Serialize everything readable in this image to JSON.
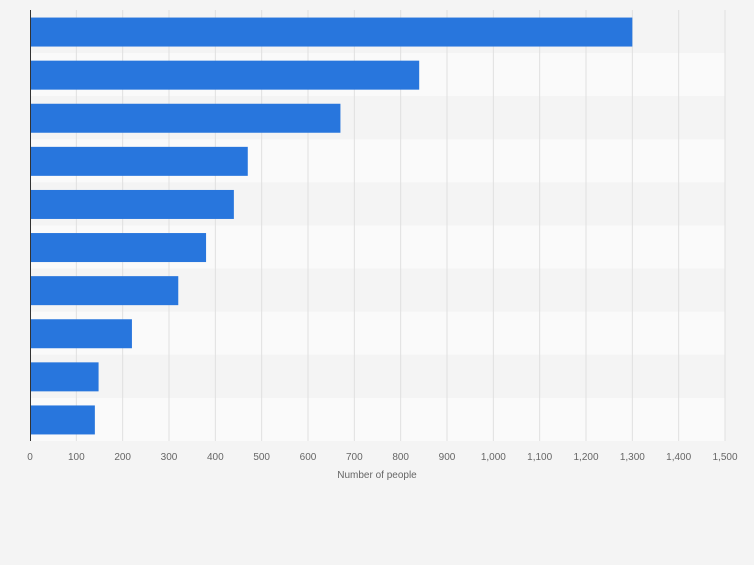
{
  "chart_data": {
    "type": "bar",
    "orientation": "horizontal",
    "categories": [
      "",
      "",
      "",
      "",
      "",
      "",
      "",
      "",
      "",
      ""
    ],
    "values": [
      1300,
      840,
      670,
      470,
      440,
      380,
      320,
      220,
      148,
      140
    ],
    "xlabel": "Number of people",
    "xlim": [
      0,
      1500
    ],
    "x_ticks": [
      "0",
      "100",
      "200",
      "300",
      "400",
      "500",
      "600",
      "700",
      "800",
      "900",
      "1,000",
      "1,100",
      "1,200",
      "1,300",
      "1,400",
      "1,500"
    ],
    "grid": true,
    "colors": {
      "bar": "#2876dd",
      "band_dark": "#f4f4f4",
      "band_light": "#fafafa",
      "grid": "#e0e0e0",
      "axis": "#333333",
      "text": "#666666"
    }
  }
}
